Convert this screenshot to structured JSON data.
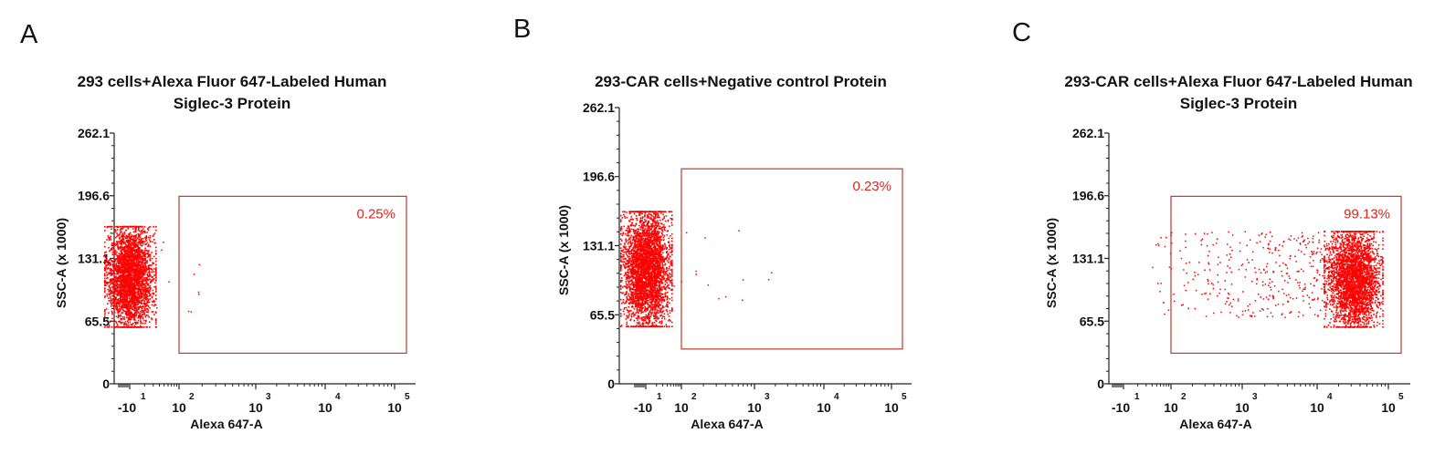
{
  "chart_data": [
    {
      "type": "scatter",
      "panel_label": "A",
      "title_lines": [
        "293 cells+Alexa Fluor 647-Labeled Human",
        "Siglec-3 Protein"
      ],
      "xlabel": "Alexa 647-A",
      "ylabel": "SSC-A (x 1000)",
      "x_scale": "log",
      "x_ticks": [
        {
          "base": "-10",
          "exp": "1"
        },
        {
          "base": "10",
          "exp": "2"
        },
        {
          "base": "10",
          "exp": "3"
        },
        {
          "base": "10",
          "exp": "4"
        },
        {
          "base": "10",
          "exp": "5"
        }
      ],
      "y_ticks": [
        "0",
        "65.5",
        "131.1",
        "196.6",
        "262.1"
      ],
      "ylim": [
        0,
        262.1
      ],
      "gate": {
        "x_start": "10^2",
        "y_range": [
          32,
          196
        ],
        "percent_label": "0.25%"
      },
      "population": {
        "x_center": "10^1",
        "y_range": [
          60,
          165
        ],
        "main_count": 3200,
        "tail_count": 10
      },
      "color": "#ff0000"
    },
    {
      "type": "scatter",
      "panel_label": "B",
      "title_lines": [
        "293-CAR cells+Negative control Protein"
      ],
      "xlabel": "Alexa 647-A",
      "ylabel": "SSC-A (x 1000)",
      "x_scale": "log",
      "x_ticks": [
        {
          "base": "-10",
          "exp": "1"
        },
        {
          "base": "10",
          "exp": "2"
        },
        {
          "base": "10",
          "exp": "3"
        },
        {
          "base": "10",
          "exp": "4"
        },
        {
          "base": "10",
          "exp": "5"
        }
      ],
      "y_ticks": [
        "0",
        "65.5",
        "131.1",
        "196.6",
        "262.1"
      ],
      "ylim": [
        0,
        262.1
      ],
      "gate": {
        "x_start": "10^2",
        "y_range": [
          33,
          204
        ],
        "percent_label": "0.23%"
      },
      "population": {
        "x_center": "10^1",
        "y_range": [
          55,
          164
        ],
        "main_count": 3600,
        "tail_count": 14
      },
      "color": "#ff0000"
    },
    {
      "type": "scatter",
      "panel_label": "C",
      "title_lines": [
        "293-CAR cells+Alexa Fluor 647-Labeled Human",
        "Siglec-3 Protein"
      ],
      "xlabel": "Alexa 647-A",
      "ylabel": "SSC-A (x 1000)",
      "x_scale": "log",
      "x_ticks": [
        {
          "base": "-10",
          "exp": "1"
        },
        {
          "base": "10",
          "exp": "2"
        },
        {
          "base": "10",
          "exp": "3"
        },
        {
          "base": "10",
          "exp": "4"
        },
        {
          "base": "10",
          "exp": "5"
        }
      ],
      "y_ticks": [
        "0",
        "65.5",
        "131.1",
        "196.6",
        "262.1"
      ],
      "ylim": [
        0,
        262.1
      ],
      "gate": {
        "x_start": "10^2",
        "y_range": [
          32,
          196
        ],
        "percent_label": "99.13%"
      },
      "population": {
        "x_center": "10^4.4",
        "y_range": [
          60,
          160
        ],
        "main_count": 3000,
        "tail_count": 420
      },
      "color": "#ff0000"
    }
  ]
}
